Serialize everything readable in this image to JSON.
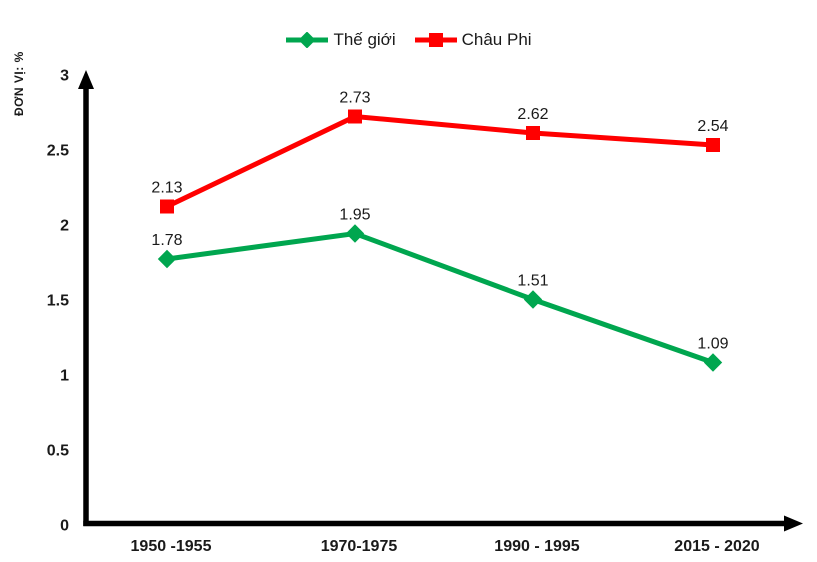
{
  "chart_data": {
    "type": "line",
    "title": "",
    "ylabel": "ĐƠN VỊ: %",
    "xlabel": "",
    "ylim": [
      0,
      3
    ],
    "grid": false,
    "legend_position": "top-center",
    "categories": [
      "1950 -1955",
      "1970-1975",
      "1990 - 1995",
      "2015 - 2020"
    ],
    "yticks": [
      {
        "value": 0,
        "label": "0"
      },
      {
        "value": 0.5,
        "label": "0.5"
      },
      {
        "value": 1,
        "label": "1"
      },
      {
        "value": 1.5,
        "label": "1.5"
      },
      {
        "value": 2,
        "label": "2"
      },
      {
        "value": 2.5,
        "label": "2.5"
      },
      {
        "value": 3,
        "label": "3"
      }
    ],
    "series": [
      {
        "name": "Thế giới",
        "color": "#00a64f",
        "marker": "diamond",
        "values": [
          1.78,
          1.95,
          1.51,
          1.09
        ]
      },
      {
        "name": "Châu Phi",
        "color": "#ff0000",
        "marker": "square",
        "values": [
          2.13,
          2.73,
          2.62,
          2.54
        ]
      }
    ],
    "data_labels": [
      "1.78",
      "1.95",
      "1.51",
      "1.09",
      "2.13",
      "2.73",
      "2.62",
      "2.54"
    ],
    "axis_color": "#000000"
  }
}
